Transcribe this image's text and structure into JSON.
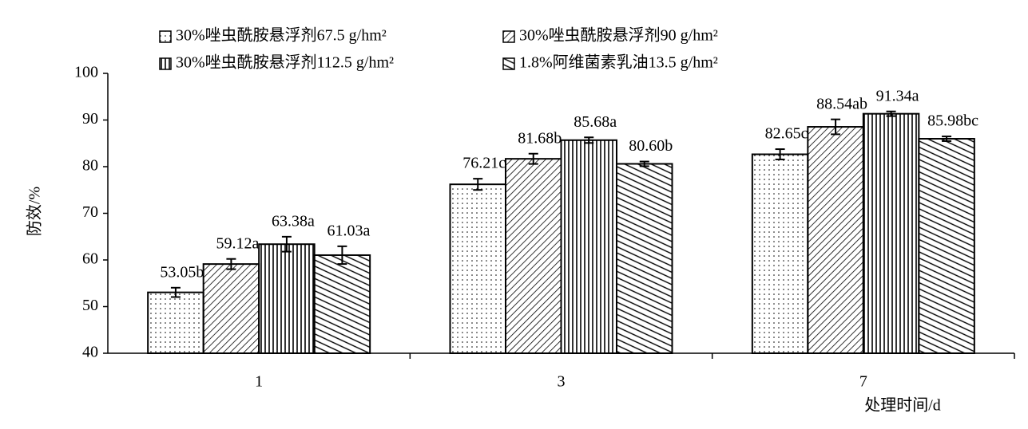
{
  "chart_data": {
    "type": "bar",
    "x_label": "处理时间/d",
    "y_label": "防效/%",
    "categories": [
      "1",
      "3",
      "7"
    ],
    "series": [
      {
        "name": "30%唑虫酰胺悬浮剂67.5 g/hm²",
        "pattern": "dots",
        "color": "#000000",
        "values": [
          53.05,
          76.21,
          82.65
        ],
        "value_labels": [
          "53.05b",
          "76.21c",
          "82.65c"
        ],
        "errors": [
          1.0,
          1.2,
          1.1
        ]
      },
      {
        "name": "30%唑虫酰胺悬浮剂90 g/hm²",
        "pattern": "diagonal",
        "color": "#000000",
        "values": [
          59.12,
          81.68,
          88.54
        ],
        "value_labels": [
          "59.12a",
          "81.68b",
          "88.54ab"
        ],
        "errors": [
          1.1,
          1.1,
          1.6
        ]
      },
      {
        "name": "30%唑虫酰胺悬浮剂112.5 g/hm²",
        "pattern": "vertical",
        "color": "#000000",
        "values": [
          63.38,
          85.68,
          91.34
        ],
        "value_labels": [
          "63.38a",
          "85.68a",
          "91.34a"
        ],
        "errors": [
          1.6,
          0.6,
          0.5
        ]
      },
      {
        "name": "1.8%阿维菌素乳油13.5 g/hm²",
        "pattern": "shallow",
        "color": "#000000",
        "values": [
          61.03,
          80.6,
          85.98
        ],
        "value_labels": [
          "61.03a",
          "80.60b",
          "85.98bc"
        ],
        "errors": [
          1.9,
          0.5,
          0.5
        ]
      }
    ],
    "ylim": [
      40,
      100
    ],
    "yticks": [
      40,
      50,
      60,
      70,
      80,
      90,
      100
    ],
    "grid": false,
    "legend": "top"
  }
}
